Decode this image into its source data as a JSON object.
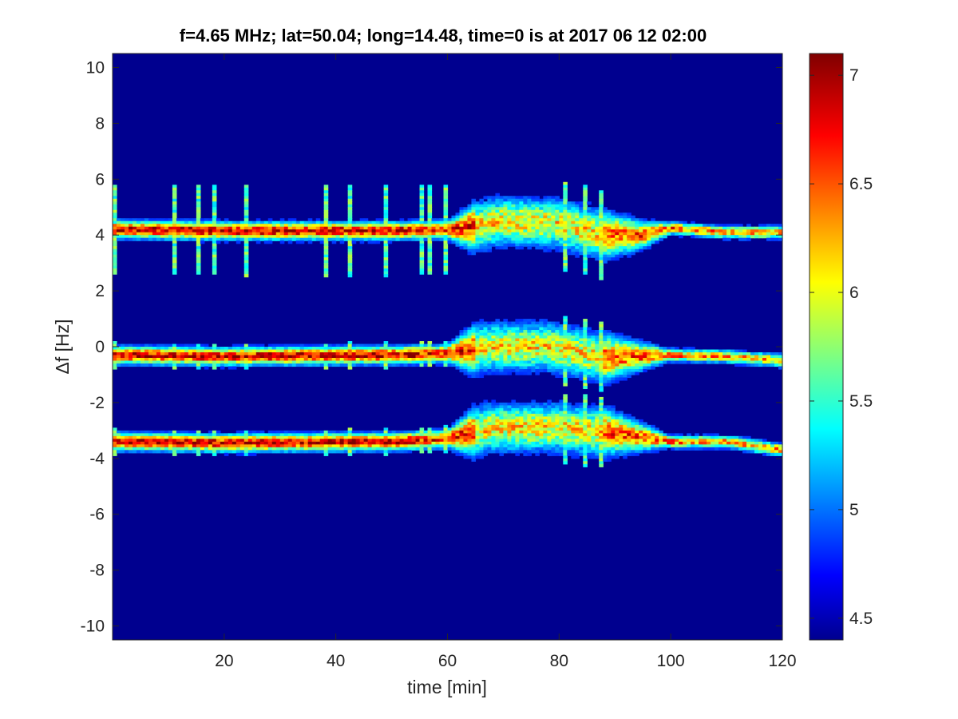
{
  "chart_data": {
    "type": "heatmap",
    "title": "f=4.65 MHz;  lat=50.04; long=14.48, time=0 is at 2017 06 12 02:00",
    "xlabel": "time [min]",
    "ylabel": "Δf [Hz]",
    "xlim": [
      0,
      120
    ],
    "ylim": [
      -10.5,
      10.5
    ],
    "x_ticks": [
      "20",
      "40",
      "60",
      "80",
      "100",
      "120"
    ],
    "x_tick_values": [
      20,
      40,
      60,
      80,
      100,
      120
    ],
    "y_ticks": [
      "10",
      "8",
      "6",
      "4",
      "2",
      "0",
      "-2",
      "-4",
      "-6",
      "-8",
      "-10"
    ],
    "y_tick_values": [
      10,
      8,
      6,
      4,
      2,
      0,
      -2,
      -4,
      -6,
      -8,
      -10
    ],
    "colorbar": {
      "range": [
        4.4,
        7.1
      ],
      "ticks": [
        "7",
        "6.5",
        "6",
        "5.5",
        "5",
        "4.5"
      ],
      "tick_values": [
        7,
        6.5,
        6,
        5.5,
        5,
        4.5
      ],
      "colormap": "jet"
    },
    "background_value": 4.4,
    "bands": [
      {
        "name": "upper",
        "center_hz": [
          [
            0,
            4.2
          ],
          [
            20,
            4.15
          ],
          [
            50,
            4.15
          ],
          [
            62,
            4.2
          ],
          [
            70,
            4.5
          ],
          [
            80,
            4.4
          ],
          [
            88,
            4.0
          ],
          [
            95,
            4.0
          ],
          [
            100,
            4.25
          ],
          [
            110,
            4.1
          ],
          [
            120,
            4.1
          ]
        ]
      },
      {
        "name": "middle",
        "center_hz": [
          [
            0,
            -0.3
          ],
          [
            20,
            -0.35
          ],
          [
            50,
            -0.3
          ],
          [
            60,
            -0.25
          ],
          [
            68,
            0.0
          ],
          [
            78,
            0.0
          ],
          [
            88,
            -0.4
          ],
          [
            100,
            -0.3
          ],
          [
            110,
            -0.35
          ],
          [
            120,
            -0.5
          ]
        ]
      },
      {
        "name": "lower",
        "center_hz": [
          [
            0,
            -3.4
          ],
          [
            20,
            -3.45
          ],
          [
            50,
            -3.4
          ],
          [
            60,
            -3.3
          ],
          [
            68,
            -2.9
          ],
          [
            80,
            -2.9
          ],
          [
            90,
            -3.1
          ],
          [
            100,
            -3.4
          ],
          [
            110,
            -3.4
          ],
          [
            120,
            -3.7
          ]
        ]
      }
    ],
    "grid": false
  }
}
